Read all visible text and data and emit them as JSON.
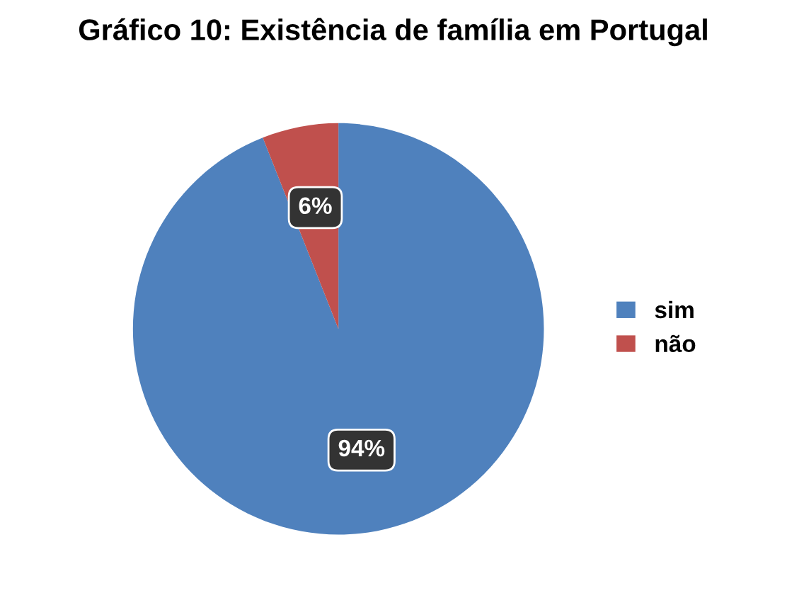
{
  "chart_data": {
    "type": "pie",
    "title": "Gráfico 10: Existência de família em Portugal",
    "categories": [
      "sim",
      "não"
    ],
    "values": [
      94,
      6
    ],
    "colors": [
      "#4f81bd",
      "#c0504d"
    ],
    "value_labels": [
      "94%",
      "6%"
    ],
    "legend": "right"
  }
}
